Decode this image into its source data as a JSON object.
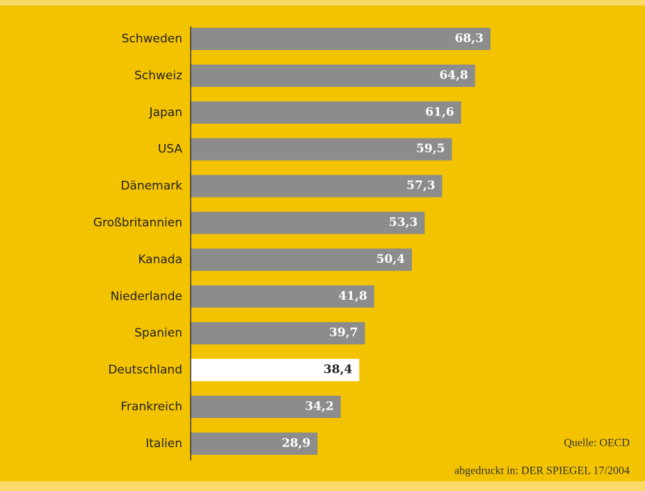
{
  "chart_data": {
    "type": "barh",
    "categories": [
      "Schweden",
      "Schweiz",
      "Japan",
      "USA",
      "Dänemark",
      "Großbritannien",
      "Kanada",
      "Niederlande",
      "Spanien",
      "Deutschland",
      "Frankreich",
      "Italien"
    ],
    "values": [
      68.3,
      64.8,
      61.6,
      59.5,
      57.3,
      53.3,
      50.4,
      41.8,
      39.7,
      38.4,
      34.2,
      28.9
    ],
    "value_labels": [
      "68,3",
      "64,8",
      "61,6",
      "59,5",
      "57,3",
      "53,3",
      "50,4",
      "41,8",
      "39,7",
      "38,4",
      "34,2",
      "28,9"
    ],
    "colors": [
      "#8c8c8c",
      "#8c8c8c",
      "#8c8c8c",
      "#8c8c8c",
      "#8c8c8c",
      "#8c8c8c",
      "#8c8c8c",
      "#8c8c8c",
      "#8c8c8c",
      "#ffffff",
      "#8c8c8c",
      "#8c8c8c"
    ],
    "label_colors": [
      "#ffffff",
      "#ffffff",
      "#ffffff",
      "#ffffff",
      "#ffffff",
      "#ffffff",
      "#ffffff",
      "#ffffff",
      "#ffffff",
      "#222222",
      "#ffffff",
      "#ffffff"
    ],
    "xlim": [
      0,
      100
    ],
    "annotations": [
      "Quelle: OECD",
      "abgedruckt in: DER SPIEGEL 17/2004"
    ]
  }
}
